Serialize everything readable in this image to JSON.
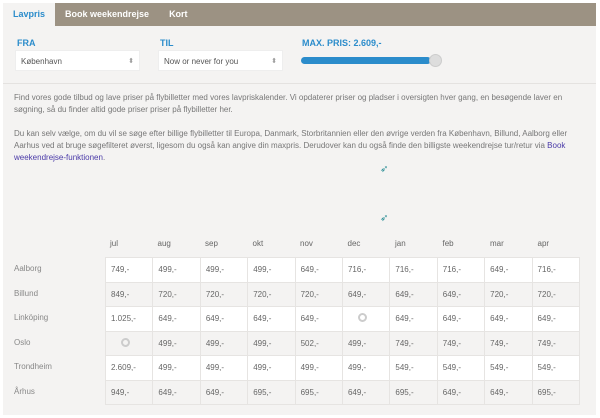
{
  "tabs": [
    "Lavpris",
    "Book weekendrejse",
    "Kort"
  ],
  "form": {
    "from_label": "FRA",
    "from_value": "København",
    "to_label": "TIL",
    "to_value": "Now or never for you",
    "max_label": "MAX. PRIS: 2.609,-",
    "max_fraction": 1.0
  },
  "intro": {
    "p1": "Find vores gode tilbud og lave priser på flybilletter med vores lavpriskalender. Vi opdaterer priser og pladser i oversigten hver gang, en besøgende laver en søgning, så du finder altid gode priser priser på flybilletter her.",
    "p2": "Du kan selv vælge, om du vil se søge efter billige flybilletter til Europa, Danmark, Storbritannien eller den øvrige verden fra København, Billund, Aalborg eller Aarhus ved at bruge søgefilteret øverst, ligesom du også kan angive din maxpris. Derudover kan du også finde den billigste weekendrejse tur/retur via ",
    "link": "Book weekendrejse-funktionen",
    "p2_end": "."
  },
  "months": [
    "jul",
    "aug",
    "sep",
    "okt",
    "nov",
    "dec",
    "jan",
    "feb",
    "mar",
    "apr"
  ],
  "rows": [
    {
      "city": "Aalborg",
      "prices": [
        "749,-",
        "499,-",
        "499,-",
        "499,-",
        "649,-",
        "716,-",
        "716,-",
        "716,-",
        "649,-",
        "716,-"
      ]
    },
    {
      "city": "Billund",
      "prices": [
        "849,-",
        "720,-",
        "720,-",
        "720,-",
        "720,-",
        "649,-",
        "649,-",
        "649,-",
        "720,-",
        "720,-"
      ]
    },
    {
      "city": "Linköping",
      "prices": [
        "1.025,-",
        "649,-",
        "649,-",
        "649,-",
        "649,-",
        null,
        "649,-",
        "649,-",
        "649,-",
        "649,-"
      ]
    },
    {
      "city": "Oslo",
      "prices": [
        null,
        "499,-",
        "499,-",
        "499,-",
        "502,-",
        "499,-",
        "749,-",
        "749,-",
        "749,-",
        "749,-"
      ]
    },
    {
      "city": "Trondheim",
      "prices": [
        "2.609,-",
        "499,-",
        "499,-",
        "499,-",
        "499,-",
        "499,-",
        "549,-",
        "549,-",
        "549,-",
        "549,-"
      ]
    },
    {
      "city": "Århus",
      "prices": [
        "949,-",
        "649,-",
        "649,-",
        "695,-",
        "695,-",
        "649,-",
        "695,-",
        "649,-",
        "649,-",
        "695,-"
      ]
    }
  ]
}
